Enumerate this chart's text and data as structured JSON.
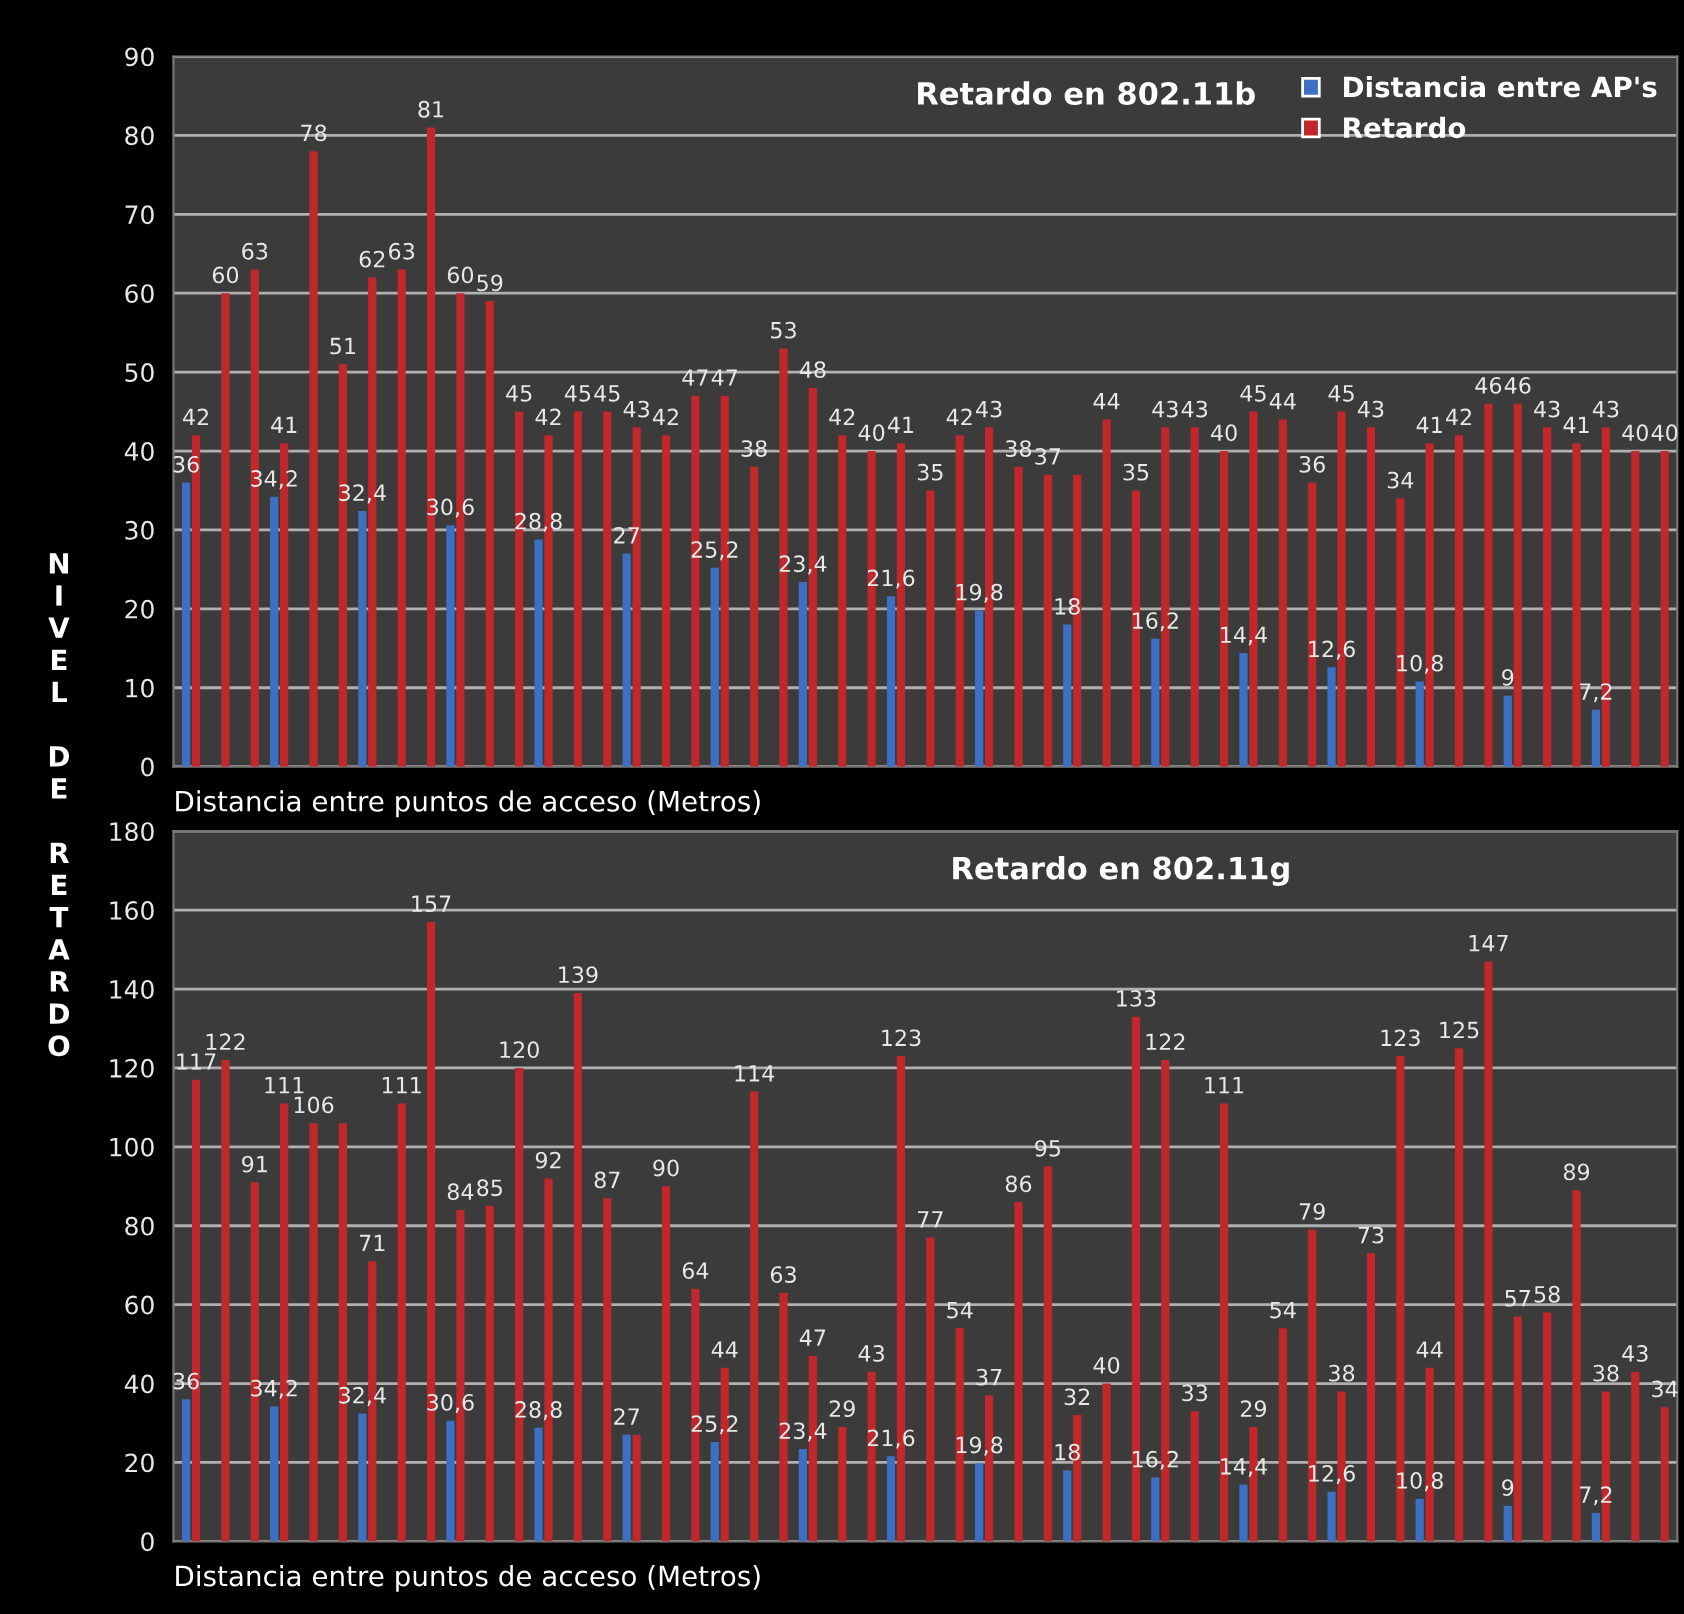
{
  "chart_data": [
    {
      "type": "bar",
      "title": "Retardo en 802.11b",
      "xlabel": "Distancia entre puntos de acceso (Metros)",
      "ylabel": "NIVEL DE RETARDO",
      "categories": [
        null,
        null,
        null,
        null,
        null,
        null,
        null,
        null,
        null,
        null,
        null,
        null,
        null,
        null,
        null,
        null,
        null,
        null,
        null,
        null,
        null,
        null,
        null,
        null,
        null,
        null,
        null,
        null,
        null,
        null,
        null,
        null,
        null,
        null,
        null,
        null,
        null,
        null,
        null,
        null,
        null,
        null,
        null,
        null,
        null,
        null,
        null,
        null,
        null,
        null,
        null
      ],
      "series": [
        {
          "name": "Distancia entre AP's",
          "color": "#3d6fc2",
          "values": [
            36,
            null,
            null,
            34.2,
            null,
            null,
            32.4,
            null,
            null,
            30.6,
            null,
            null,
            28.8,
            null,
            null,
            27,
            null,
            null,
            25.2,
            null,
            null,
            23.4,
            null,
            null,
            21.6,
            null,
            null,
            19.8,
            null,
            null,
            18,
            null,
            null,
            16.2,
            null,
            null,
            14.4,
            null,
            null,
            12.6,
            null,
            null,
            10.8,
            null,
            null,
            9,
            null,
            null,
            7.2,
            null,
            null
          ],
          "value_labels": [
            "36",
            null,
            null,
            "34,2",
            null,
            null,
            "32,4",
            null,
            null,
            "30,6",
            null,
            null,
            "28,8",
            null,
            null,
            "27",
            null,
            null,
            "25,2",
            null,
            null,
            "23,4",
            null,
            null,
            "21,6",
            null,
            null,
            "19,8",
            null,
            null,
            "18",
            null,
            null,
            "16,2",
            null,
            null,
            "14,4",
            null,
            null,
            "12,6",
            null,
            null,
            "10,8",
            null,
            null,
            "9",
            null,
            null,
            "7,2",
            null,
            null
          ]
        },
        {
          "name": "Retardo",
          "color": "#c0282c",
          "values": [
            42,
            60,
            63,
            41,
            78,
            51,
            62,
            63,
            81,
            60,
            59,
            45,
            42,
            45,
            45,
            43,
            42,
            47,
            47,
            38,
            53,
            48,
            42,
            40,
            41,
            35,
            42,
            43,
            38,
            37,
            37,
            44,
            35,
            43,
            43,
            40,
            45,
            44,
            36,
            45,
            43,
            34,
            41,
            42,
            46,
            46,
            43,
            41,
            43,
            40,
            40
          ],
          "value_labels": [
            "42",
            "60",
            "63",
            "41",
            "78",
            "51",
            "62",
            "63",
            "81",
            "60",
            "59",
            "45",
            "42",
            "45",
            "45",
            "43",
            "42",
            "47",
            "47",
            "38",
            "53",
            "48",
            "42",
            "40",
            "41",
            "35",
            "42",
            "43",
            "38",
            "37",
            null,
            "44",
            "35",
            "43",
            "43",
            "40",
            "45",
            "44",
            "36",
            "45",
            "43",
            "34",
            "41",
            "42",
            "46",
            "46",
            "43",
            "41",
            "43",
            "40",
            "40"
          ]
        }
      ],
      "ylim": [
        0,
        90
      ],
      "yticks": [
        0,
        10,
        20,
        30,
        40,
        50,
        60,
        70,
        80,
        90
      ],
      "grid": "y",
      "legend": "top right"
    },
    {
      "type": "bar",
      "title": "Retardo en 802.11g",
      "xlabel": "Distancia entre puntos de acceso (Metros)",
      "categories": [
        null,
        null,
        null,
        null,
        null,
        null,
        null,
        null,
        null,
        null,
        null,
        null,
        null,
        null,
        null,
        null,
        null,
        null,
        null,
        null,
        null,
        null,
        null,
        null,
        null,
        null,
        null,
        null,
        null,
        null,
        null,
        null,
        null,
        null,
        null,
        null,
        null,
        null,
        null,
        null,
        null,
        null,
        null,
        null,
        null,
        null,
        null,
        null,
        null,
        null,
        null
      ],
      "series": [
        {
          "color": "#3d6fc2",
          "values": [
            36,
            null,
            null,
            34.2,
            null,
            null,
            32.4,
            null,
            null,
            30.6,
            null,
            null,
            28.8,
            null,
            null,
            27,
            null,
            null,
            25.2,
            null,
            null,
            23.4,
            null,
            null,
            21.6,
            null,
            null,
            19.8,
            null,
            null,
            18,
            null,
            null,
            16.2,
            null,
            null,
            14.4,
            null,
            null,
            12.6,
            null,
            null,
            10.8,
            null,
            null,
            9,
            null,
            null,
            7.2,
            null,
            null
          ],
          "value_labels": [
            "36",
            null,
            null,
            "34,2",
            null,
            null,
            "32,4",
            null,
            null,
            "30,6",
            null,
            null,
            "28,8",
            null,
            null,
            "27",
            null,
            null,
            "25,2",
            null,
            null,
            "23,4",
            null,
            null,
            "21,6",
            null,
            null,
            "19,8",
            null,
            null,
            "18",
            null,
            null,
            "16,2",
            null,
            null,
            "14,4",
            null,
            null,
            "12,6",
            null,
            null,
            "10,8",
            null,
            null,
            "9",
            null,
            null,
            "7,2",
            null,
            null
          ]
        },
        {
          "color": "#c0282c",
          "values": [
            117,
            122,
            91,
            111,
            106,
            106,
            71,
            111,
            157,
            84,
            85,
            120,
            92,
            139,
            87,
            27,
            90,
            64,
            44,
            114,
            63,
            47,
            29,
            43,
            123,
            77,
            54,
            37,
            86,
            95,
            32,
            40,
            133,
            122,
            33,
            111,
            29,
            54,
            79,
            38,
            73,
            123,
            44,
            125,
            147,
            57,
            58,
            89,
            38,
            43,
            34
          ],
          "value_labels": [
            "117",
            "122",
            "91",
            "111",
            "106",
            null,
            "71",
            "111",
            "157",
            "84",
            "85",
            "120",
            "92",
            "139",
            "87",
            null,
            "90",
            "64",
            "44",
            "114",
            "63",
            "47",
            "29",
            "43",
            "123",
            "77",
            "54",
            "37",
            "86",
            "95",
            "32",
            "40",
            "133",
            "122",
            "33",
            "111",
            "29",
            "54",
            "79",
            "38",
            "73",
            "123",
            "44",
            "125",
            "147",
            "57",
            "58",
            "89",
            "38",
            "43",
            "34"
          ]
        }
      ],
      "ylim": [
        0,
        180
      ],
      "yticks": [
        0,
        20,
        40,
        60,
        80,
        100,
        120,
        140,
        160,
        180
      ],
      "grid": "y"
    }
  ]
}
